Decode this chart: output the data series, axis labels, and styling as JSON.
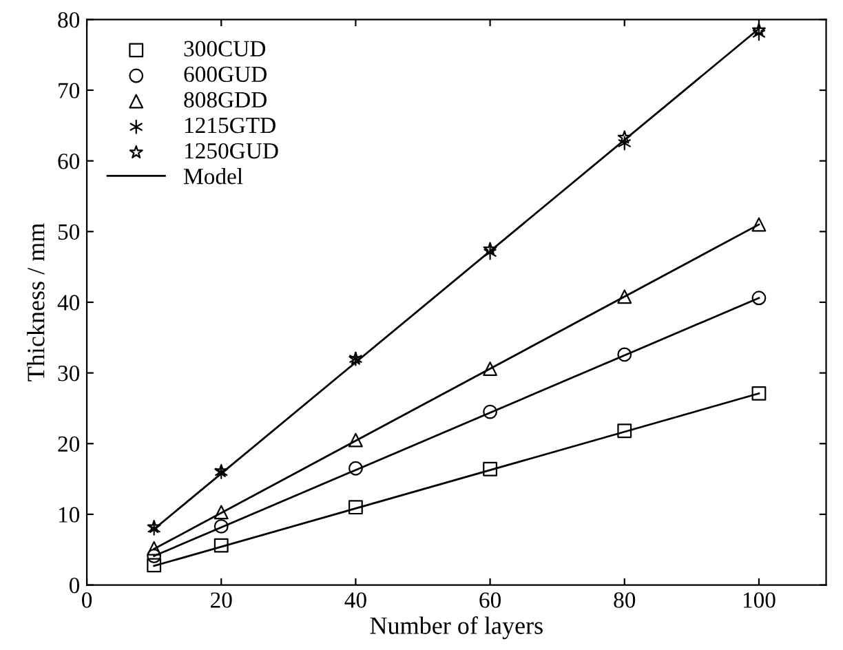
{
  "chart_data": {
    "type": "scatter",
    "xlabel": "Number of layers",
    "ylabel": "Thickness / mm",
    "xlim": [
      0,
      110
    ],
    "ylim": [
      0,
      80
    ],
    "xticks": [
      0,
      20,
      40,
      60,
      80,
      100
    ],
    "yticks": [
      0,
      10,
      20,
      30,
      40,
      50,
      60,
      70,
      80
    ],
    "grid": false,
    "legend": "top left",
    "series": [
      {
        "name": "300CUD",
        "type": "scatter",
        "marker": "square",
        "color": "#000000",
        "x": [
          10,
          20,
          40,
          60,
          80,
          100
        ],
        "values": [
          2.8,
          5.6,
          11,
          16.4,
          21.8,
          27.1
        ]
      },
      {
        "name": "600GUD",
        "type": "scatter",
        "marker": "circle",
        "color": "#000000",
        "x": [
          10,
          20,
          40,
          60,
          80,
          100
        ],
        "values": [
          4.1,
          8.3,
          16.5,
          24.5,
          32.6,
          40.6
        ]
      },
      {
        "name": "808GDD",
        "type": "scatter",
        "marker": "triangle",
        "color": "#000000",
        "x": [
          10,
          20,
          40,
          60,
          80,
          100
        ],
        "values": [
          5.2,
          10.3,
          20.5,
          30.6,
          40.8,
          51
        ]
      },
      {
        "name": "1215GTD",
        "type": "scatter",
        "marker": "cross",
        "color": "#000000",
        "x": [
          10,
          20,
          40,
          60,
          80,
          100
        ],
        "values": [
          8.0,
          16,
          32,
          47,
          62.5,
          78
        ]
      },
      {
        "name": "1250GUD",
        "type": "scatter",
        "marker": "star",
        "color": "#000000",
        "x": [
          10,
          20,
          40,
          60,
          80,
          100
        ],
        "values": [
          8.2,
          16.1,
          32,
          47.5,
          63.3,
          78.5
        ]
      },
      {
        "name": "Model",
        "type": "line",
        "color": "#000000",
        "x": [
          10,
          100
        ],
        "values": [
          7.9,
          78.7
        ]
      },
      {
        "type": "line",
        "color": "#000000",
        "x": [
          10,
          100
        ],
        "values": [
          5.1,
          51
        ]
      },
      {
        "type": "line",
        "color": "#000000",
        "x": [
          10,
          100
        ],
        "values": [
          4.1,
          40.6
        ]
      },
      {
        "type": "line",
        "color": "#000000",
        "x": [
          10,
          100
        ],
        "values": [
          2.7,
          27.1
        ]
      }
    ]
  }
}
